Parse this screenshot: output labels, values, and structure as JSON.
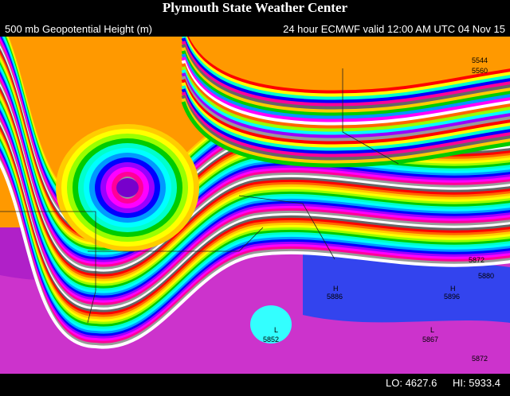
{
  "header": {
    "title": "Plymouth State Weather Center"
  },
  "caption": {
    "left": "500 mb Geopotential Height (m)",
    "right": "24 hour ECMWF valid 12:00 AM UTC 04 Nov 15"
  },
  "footer": {
    "lo": "LO: 4627.6",
    "hi": "HI: 5933.4"
  },
  "labels": [
    "5544",
    "5560",
    "5872",
    "5880",
    "5886",
    "5896",
    "5852",
    "5867",
    "5872",
    "H",
    "H",
    "L",
    "L"
  ]
}
